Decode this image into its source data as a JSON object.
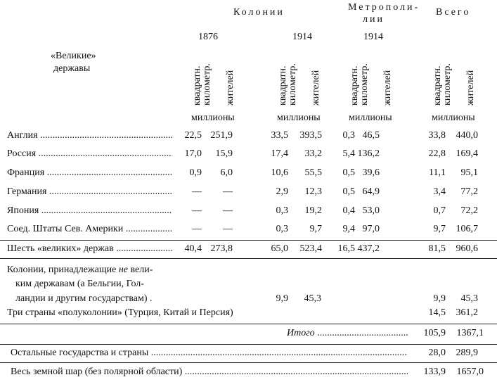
{
  "header": {
    "group_colonies": "Колонии",
    "group_metropoles": "Метрополи-",
    "group_metropoles_2": "лии",
    "group_total": "Всего",
    "year_1876": "1876",
    "year_1914_col": "1914",
    "year_1914_metro": "1914",
    "row_header_1": "«Великие»",
    "row_header_2": "державы",
    "sub_area_1": "квадратн.",
    "sub_area_2": "километр.",
    "sub_pop": "жителей",
    "units": "миллионы"
  },
  "rows": [
    {
      "label": "Англия",
      "v": [
        "22,5",
        "251,9",
        "33,5",
        "393,5",
        "0,3",
        "46,5",
        "33,8",
        "440,0"
      ]
    },
    {
      "label": "Россия",
      "v": [
        "17,0",
        "15,9",
        "17,4",
        "33,2",
        "5,4",
        "136,2",
        "22,8",
        "169,4"
      ]
    },
    {
      "label": "Франция",
      "v": [
        "0,9",
        "6,0",
        "10,6",
        "55,5",
        "0,5",
        "39,6",
        "11,1",
        "95,1"
      ]
    },
    {
      "label": "Германия",
      "v": [
        "—",
        "—",
        "2,9",
        "12,3",
        "0,5",
        "64,9",
        "3,4",
        "77,2"
      ]
    },
    {
      "label": "Япония",
      "v": [
        "—",
        "—",
        "0,3",
        "19,2",
        "0,4",
        "53,0",
        "0,7",
        "72,2"
      ]
    },
    {
      "label": "Соед. Штаты Сев. Америки",
      "v": [
        "—",
        "—",
        "0,3",
        "9,7",
        "9,4",
        "97,0",
        "9,7",
        "106,7"
      ]
    },
    {
      "label": "Шесть «великих» держав",
      "v": [
        "40,4",
        "273,8",
        "65,0",
        "523,4",
        "16,5",
        "437,2",
        "81,5",
        "960,6"
      ]
    }
  ],
  "other_colonies": {
    "line1_a": "Колонии, принадлежащие ",
    "line1_em": "не",
    "line1_b": " вели-",
    "line2": "ким державам (а Бельгии, Гол-",
    "line3": "ландии и другим государствам) .",
    "col_area": "9,9",
    "col_pop": "45,3",
    "total_area": "9,9",
    "total_pop": "45,3"
  },
  "semicolonies": {
    "label": "Три страны «полуколонии» (Турция, Китай и Персия)",
    "area": "14,5",
    "pop": "361,2"
  },
  "subtotal": {
    "label": "Итого",
    "area": "105,9",
    "pop": "1367,1"
  },
  "rest": {
    "label": "Остальные государства и страны",
    "area": "28,0",
    "pop": "289,9"
  },
  "world": {
    "label": "Весь земной шар (без полярной области)",
    "area": "133,9",
    "pop": "1657,0"
  }
}
